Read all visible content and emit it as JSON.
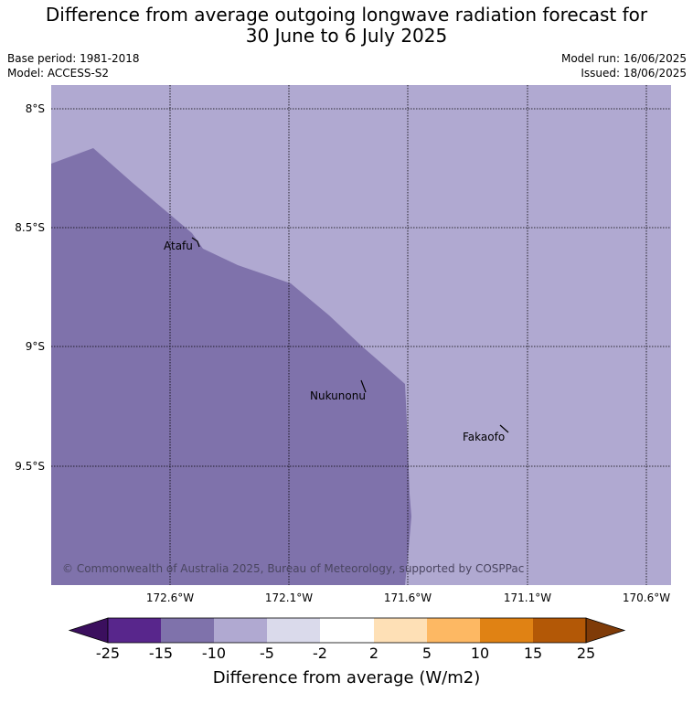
{
  "title_line1": "Difference from average outgoing longwave radiation forecast for",
  "title_line2": "30 June to 6 July 2025",
  "base_period": "Base period: 1981-2018",
  "model": "Model: ACCESS-S2",
  "model_run": "Model run: 16/06/2025",
  "issued": "Issued: 18/06/2025",
  "lat_ticks": [
    "8°S",
    "8.5°S",
    "9°S",
    "9.5°S"
  ],
  "lon_ticks": [
    "172.6°W",
    "172.1°W",
    "171.6°W",
    "171.1°W",
    "170.6°W"
  ],
  "places": [
    "Atafu",
    "Nukunonu",
    "Fakaofo"
  ],
  "credit": "© Commonwealth of Australia 2025, Bureau of Meteorology, supported by COSPPac",
  "colorbar": {
    "label": "Difference from average (W/m2)",
    "ticks": [
      "-25",
      "-15",
      "-10",
      "-5",
      "-2",
      "2",
      "5",
      "10",
      "15",
      "25"
    ],
    "colors": [
      "#3b0f5e",
      "#58268c",
      "#7f72ab",
      "#b0a9d1",
      "#dadaeb",
      "#ffffff",
      "#fee0b6",
      "#fdb863",
      "#e08214",
      "#b35806",
      "#7f3b08"
    ]
  },
  "map_colors": {
    "light_region": "#b0a9d1",
    "dark_region": "#7f72ab"
  }
}
